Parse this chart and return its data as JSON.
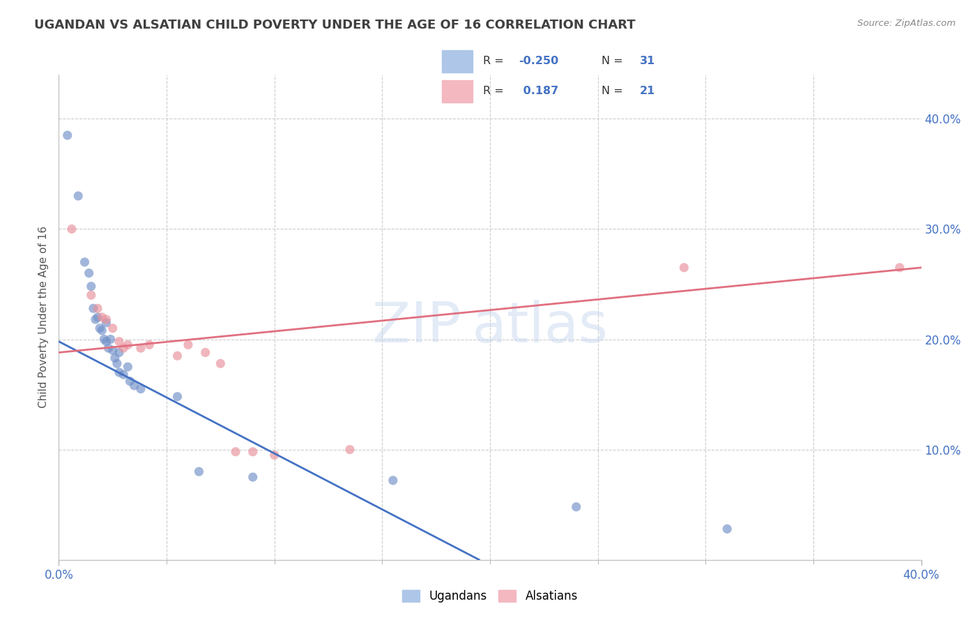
{
  "title": "UGANDAN VS ALSATIAN CHILD POVERTY UNDER THE AGE OF 16 CORRELATION CHART",
  "source": "Source: ZipAtlas.com",
  "ylabel": "Child Poverty Under the Age of 16",
  "xlim": [
    0.0,
    0.4
  ],
  "ylim": [
    0.0,
    0.44
  ],
  "r_ugandan": -0.25,
  "n_ugandan": 31,
  "r_alsatian": 0.187,
  "n_alsatian": 21,
  "ugandan_scatter": [
    [
      0.004,
      0.385
    ],
    [
      0.009,
      0.33
    ],
    [
      0.012,
      0.27
    ],
    [
      0.014,
      0.26
    ],
    [
      0.015,
      0.248
    ],
    [
      0.016,
      0.228
    ],
    [
      0.017,
      0.218
    ],
    [
      0.018,
      0.22
    ],
    [
      0.019,
      0.21
    ],
    [
      0.02,
      0.208
    ],
    [
      0.021,
      0.2
    ],
    [
      0.022,
      0.215
    ],
    [
      0.022,
      0.198
    ],
    [
      0.023,
      0.192
    ],
    [
      0.024,
      0.2
    ],
    [
      0.025,
      0.19
    ],
    [
      0.026,
      0.183
    ],
    [
      0.027,
      0.178
    ],
    [
      0.028,
      0.188
    ],
    [
      0.028,
      0.17
    ],
    [
      0.03,
      0.168
    ],
    [
      0.032,
      0.175
    ],
    [
      0.033,
      0.162
    ],
    [
      0.035,
      0.158
    ],
    [
      0.038,
      0.155
    ],
    [
      0.055,
      0.148
    ],
    [
      0.065,
      0.08
    ],
    [
      0.09,
      0.075
    ],
    [
      0.155,
      0.072
    ],
    [
      0.24,
      0.048
    ],
    [
      0.31,
      0.028
    ]
  ],
  "alsatian_scatter": [
    [
      0.006,
      0.3
    ],
    [
      0.015,
      0.24
    ],
    [
      0.018,
      0.228
    ],
    [
      0.02,
      0.22
    ],
    [
      0.022,
      0.218
    ],
    [
      0.025,
      0.21
    ],
    [
      0.028,
      0.198
    ],
    [
      0.03,
      0.192
    ],
    [
      0.032,
      0.195
    ],
    [
      0.038,
      0.192
    ],
    [
      0.042,
      0.195
    ],
    [
      0.055,
      0.185
    ],
    [
      0.06,
      0.195
    ],
    [
      0.068,
      0.188
    ],
    [
      0.075,
      0.178
    ],
    [
      0.082,
      0.098
    ],
    [
      0.09,
      0.098
    ],
    [
      0.1,
      0.095
    ],
    [
      0.135,
      0.1
    ],
    [
      0.29,
      0.265
    ],
    [
      0.39,
      0.265
    ]
  ],
  "ugandan_line": [
    [
      0.0,
      0.198
    ],
    [
      0.195,
      0.0
    ]
  ],
  "ugandan_line_dashed": [
    [
      0.195,
      0.0
    ],
    [
      0.4,
      -0.21
    ]
  ],
  "alsatian_line": [
    [
      0.0,
      0.188
    ],
    [
      0.4,
      0.265
    ]
  ],
  "ugandan_line_color": "#4472c4",
  "alsatian_line_color": "#e07080",
  "ugandan_color": "#7090c8",
  "alsatian_color": "#e8909a",
  "background_color": "#ffffff",
  "grid_color": "#cccccc",
  "title_color": "#404040",
  "accent_color": "#4472c4",
  "scatter_alpha": 0.65,
  "scatter_size": 90
}
